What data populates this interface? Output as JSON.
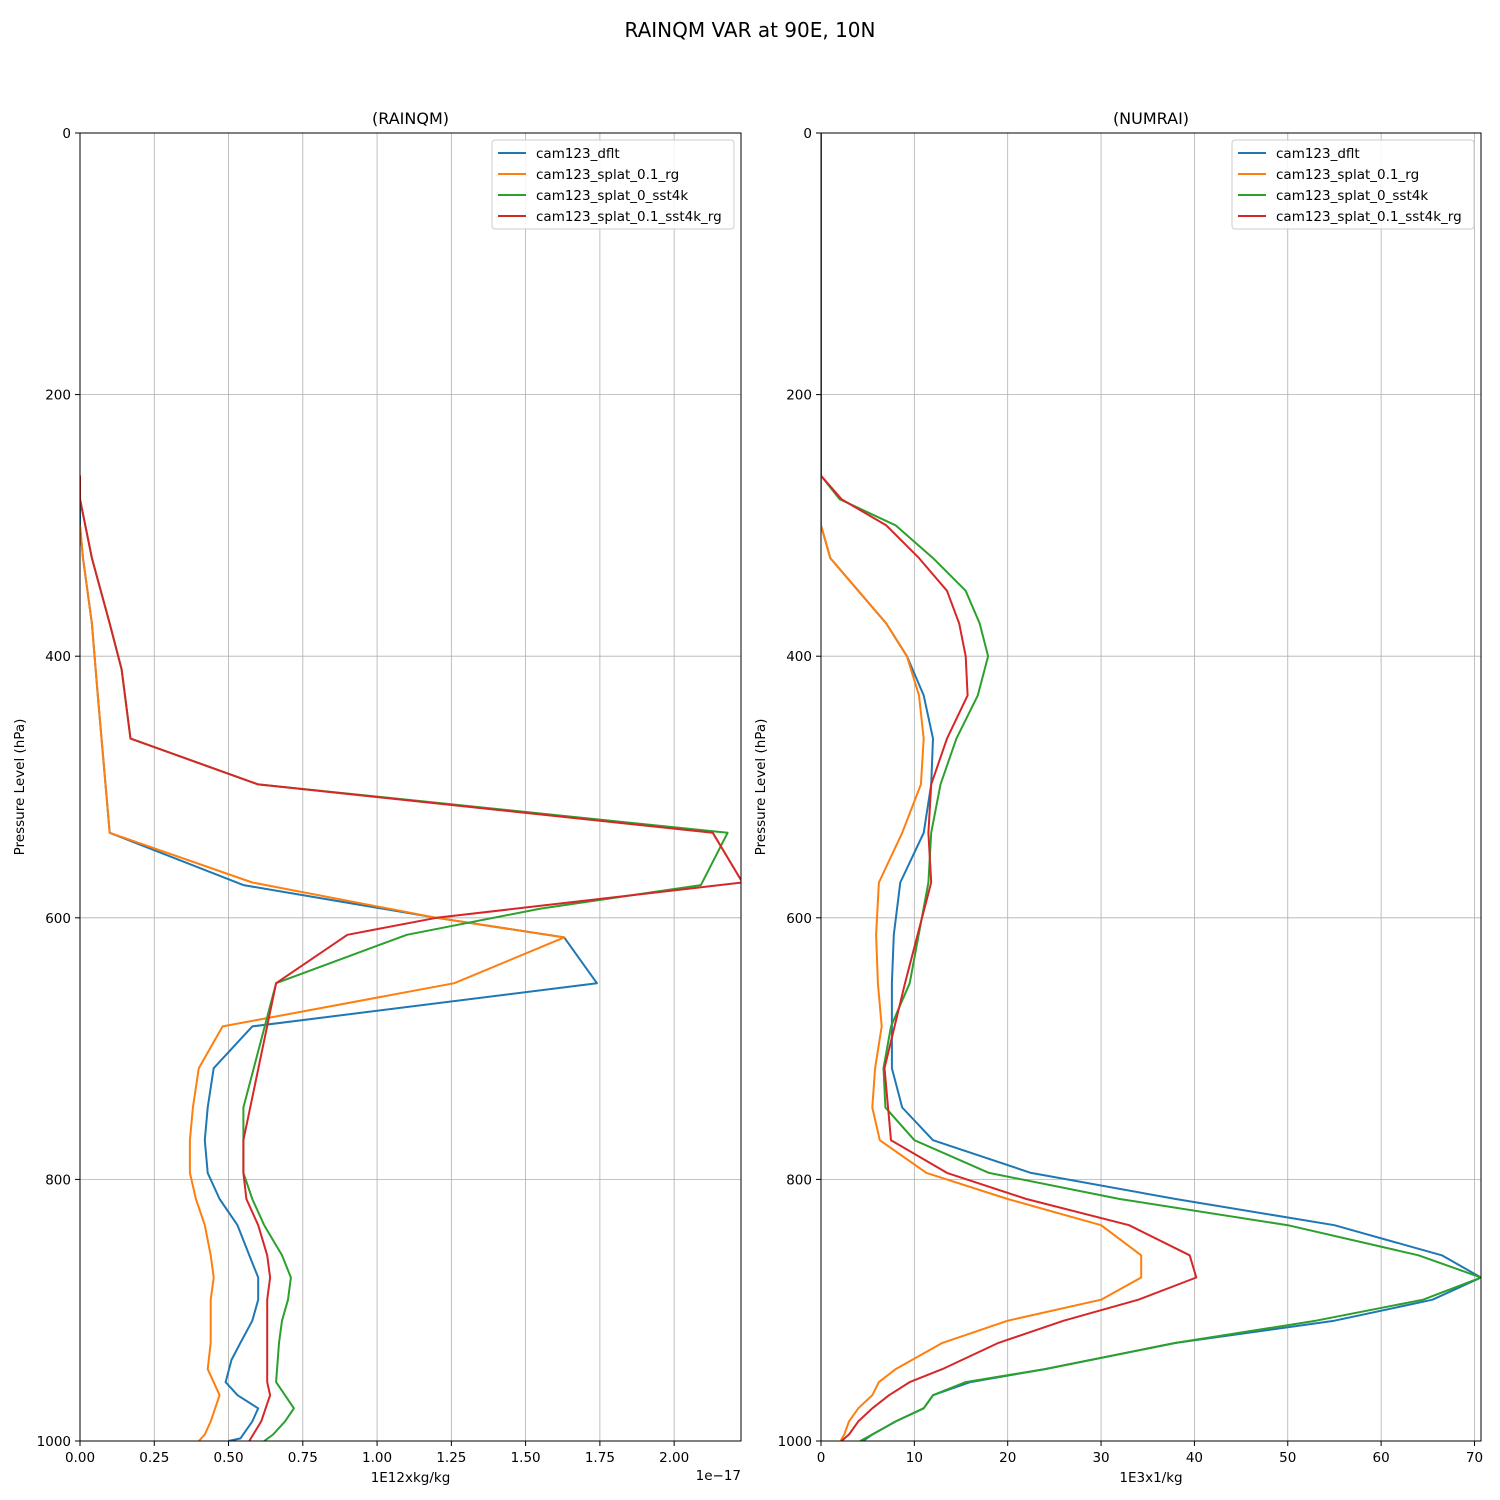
{
  "figure": {
    "suptitle": "RAINQM VAR at 90E, 10N"
  },
  "colors": {
    "series": [
      "#1f77b4",
      "#ff7f0e",
      "#2ca02c",
      "#d62728"
    ],
    "grid": "#b0b0b0",
    "axes": "#000000"
  },
  "chart_data": [
    {
      "type": "line",
      "title": "(RAINQM)",
      "xlabel": "1E12xkg/kg",
      "ylabel": "Pressure Level (hPa)",
      "offset_text": "1e−17",
      "xlim": [
        0,
        2.225
      ],
      "ylim": [
        1000,
        0
      ],
      "yinverted": true,
      "grid": true,
      "legend": "top-right",
      "xticks": [
        "0.00",
        "0.25",
        "0.50",
        "0.75",
        "1.00",
        "1.25",
        "1.50",
        "1.75",
        "2.00"
      ],
      "xtick_values": [
        0,
        0.25,
        0.5,
        0.75,
        1.0,
        1.25,
        1.5,
        1.75,
        2.0
      ],
      "yticks": [
        "0",
        "200",
        "400",
        "600",
        "800",
        "1000"
      ],
      "ytick_values": [
        0,
        200,
        400,
        600,
        800,
        1000
      ],
      "series": [
        {
          "name": "cam123_dflt",
          "color": "#1f77b4",
          "points": [
            [
              0,
              262
            ],
            [
              0,
              300
            ],
            [
              0.01,
              325
            ],
            [
              0.04,
              375
            ],
            [
              0.06,
              430
            ],
            [
              0.1,
              535
            ],
            [
              0.55,
              575
            ],
            [
              1.2,
              600
            ],
            [
              1.63,
              615
            ],
            [
              1.74,
              650
            ],
            [
              0.58,
              683
            ],
            [
              0.45,
              715
            ],
            [
              0.43,
              745
            ],
            [
              0.42,
              770
            ],
            [
              0.43,
              795
            ],
            [
              0.47,
              815
            ],
            [
              0.53,
              835
            ],
            [
              0.57,
              858
            ],
            [
              0.6,
              875
            ],
            [
              0.6,
              892
            ],
            [
              0.58,
              908
            ],
            [
              0.54,
              925
            ],
            [
              0.51,
              938
            ],
            [
              0.49,
              955
            ],
            [
              0.53,
              965
            ],
            [
              0.6,
              975
            ],
            [
              0.58,
              985
            ],
            [
              0.54,
              998
            ],
            [
              0.5,
              1000
            ]
          ]
        },
        {
          "name": "cam123_splat_0.1_rg",
          "color": "#ff7f0e",
          "points": [
            [
              0,
              300
            ],
            [
              0.01,
              325
            ],
            [
              0.04,
              375
            ],
            [
              0.06,
              430
            ],
            [
              0.1,
              535
            ],
            [
              0.58,
              573
            ],
            [
              1.2,
              600
            ],
            [
              1.63,
              615
            ],
            [
              1.26,
              650
            ],
            [
              0.48,
              683
            ],
            [
              0.4,
              715
            ],
            [
              0.38,
              745
            ],
            [
              0.37,
              770
            ],
            [
              0.37,
              795
            ],
            [
              0.39,
              815
            ],
            [
              0.42,
              835
            ],
            [
              0.44,
              858
            ],
            [
              0.45,
              875
            ],
            [
              0.44,
              892
            ],
            [
              0.44,
              908
            ],
            [
              0.44,
              925
            ],
            [
              0.43,
              945
            ],
            [
              0.47,
              965
            ],
            [
              0.44,
              985
            ],
            [
              0.42,
              995
            ],
            [
              0.4,
              1000
            ]
          ]
        },
        {
          "name": "cam123_splat_0_sst4k",
          "color": "#2ca02c",
          "points": [
            [
              0,
              262
            ],
            [
              0,
              280
            ],
            [
              0.04,
              325
            ],
            [
              0.1,
              375
            ],
            [
              0.14,
              410
            ],
            [
              0.17,
              463
            ],
            [
              0.6,
              498
            ],
            [
              2.18,
              535
            ],
            [
              2.09,
              575
            ],
            [
              1.55,
              593
            ],
            [
              1.1,
              613
            ],
            [
              0.66,
              650
            ],
            [
              0.55,
              745
            ],
            [
              0.55,
              795
            ],
            [
              0.58,
              815
            ],
            [
              0.62,
              835
            ],
            [
              0.68,
              858
            ],
            [
              0.71,
              875
            ],
            [
              0.7,
              892
            ],
            [
              0.68,
              908
            ],
            [
              0.67,
              925
            ],
            [
              0.66,
              955
            ],
            [
              0.69,
              965
            ],
            [
              0.72,
              975
            ],
            [
              0.69,
              985
            ],
            [
              0.65,
              995
            ],
            [
              0.62,
              1000
            ]
          ]
        },
        {
          "name": "cam123_splat_0.1_sst4k_rg",
          "color": "#d62728",
          "points": [
            [
              0,
              262
            ],
            [
              0,
              280
            ],
            [
              0.04,
              325
            ],
            [
              0.1,
              375
            ],
            [
              0.14,
              410
            ],
            [
              0.17,
              463
            ],
            [
              0.6,
              498
            ],
            [
              2.13,
              535
            ],
            [
              2.23,
              573
            ],
            [
              1.2,
              600
            ],
            [
              0.9,
              613
            ],
            [
              0.66,
              650
            ],
            [
              0.55,
              770
            ],
            [
              0.55,
              795
            ],
            [
              0.56,
              815
            ],
            [
              0.6,
              835
            ],
            [
              0.63,
              858
            ],
            [
              0.64,
              875
            ],
            [
              0.63,
              892
            ],
            [
              0.63,
              908
            ],
            [
              0.63,
              925
            ],
            [
              0.63,
              945
            ],
            [
              0.63,
              955
            ],
            [
              0.64,
              965
            ],
            [
              0.61,
              985
            ],
            [
              0.57,
              1000
            ]
          ]
        }
      ]
    },
    {
      "type": "line",
      "title": "(NUMRAI)",
      "xlabel": "1E3x1/kg",
      "ylabel": "Pressure Level (hPa)",
      "offset_text": "",
      "xlim": [
        0,
        70.7
      ],
      "ylim": [
        1000,
        0
      ],
      "yinverted": true,
      "grid": true,
      "legend": "top-right",
      "xticks": [
        "0",
        "10",
        "20",
        "30",
        "40",
        "50",
        "60",
        "70"
      ],
      "xtick_values": [
        0,
        10,
        20,
        30,
        40,
        50,
        60,
        70
      ],
      "yticks": [
        "0",
        "200",
        "400",
        "600",
        "800",
        "1000"
      ],
      "ytick_values": [
        0,
        200,
        400,
        600,
        800,
        1000
      ],
      "series": [
        {
          "name": "cam123_dflt",
          "color": "#1f77b4",
          "points": [
            [
              0,
              0
            ],
            [
              0,
              262
            ],
            [
              0,
              300
            ],
            [
              1,
              325
            ],
            [
              4,
              350
            ],
            [
              7,
              375
            ],
            [
              9.2,
              400
            ],
            [
              11,
              430
            ],
            [
              12,
              463
            ],
            [
              11.8,
              498
            ],
            [
              11,
              535
            ],
            [
              8.5,
              573
            ],
            [
              7.8,
              613
            ],
            [
              7.6,
              650
            ],
            [
              7.6,
              683
            ],
            [
              7.6,
              715
            ],
            [
              8.7,
              745
            ],
            [
              12,
              770
            ],
            [
              22.5,
              795
            ],
            [
              38,
              815
            ],
            [
              55,
              835
            ],
            [
              66.5,
              858
            ],
            [
              70.7,
              875
            ],
            [
              65.5,
              892
            ],
            [
              55,
              908
            ],
            [
              38,
              925
            ],
            [
              24,
              945
            ],
            [
              16,
              955
            ],
            [
              12,
              965
            ],
            [
              11,
              975
            ],
            [
              8,
              985
            ],
            [
              5.5,
              995
            ],
            [
              4.5,
              1000
            ]
          ]
        },
        {
          "name": "cam123_splat_0.1_rg",
          "color": "#ff7f0e",
          "points": [
            [
              0,
              0
            ],
            [
              0,
              300
            ],
            [
              1,
              325
            ],
            [
              4,
              350
            ],
            [
              7,
              375
            ],
            [
              9.2,
              400
            ],
            [
              10.5,
              430
            ],
            [
              11,
              463
            ],
            [
              10.7,
              498
            ],
            [
              8.7,
              535
            ],
            [
              6.2,
              573
            ],
            [
              5.9,
              613
            ],
            [
              6.1,
              650
            ],
            [
              6.5,
              683
            ],
            [
              5.8,
              715
            ],
            [
              5.5,
              745
            ],
            [
              6.3,
              770
            ],
            [
              11.3,
              795
            ],
            [
              20,
              815
            ],
            [
              30,
              835
            ],
            [
              34.3,
              858
            ],
            [
              34.3,
              875
            ],
            [
              30,
              892
            ],
            [
              20,
              908
            ],
            [
              13,
              925
            ],
            [
              8,
              945
            ],
            [
              6.2,
              955
            ],
            [
              5.5,
              965
            ],
            [
              4,
              975
            ],
            [
              3,
              985
            ],
            [
              2.5,
              995
            ],
            [
              2.1,
              1000
            ]
          ]
        },
        {
          "name": "cam123_splat_0_sst4k",
          "color": "#2ca02c",
          "points": [
            [
              0,
              0
            ],
            [
              0,
              262
            ],
            [
              2,
              280
            ],
            [
              8,
              300
            ],
            [
              12,
              325
            ],
            [
              15.5,
              350
            ],
            [
              17,
              375
            ],
            [
              17.9,
              400
            ],
            [
              16.8,
              430
            ],
            [
              14.5,
              463
            ],
            [
              12.8,
              498
            ],
            [
              11.8,
              535
            ],
            [
              11.5,
              573
            ],
            [
              9.5,
              650
            ],
            [
              7.5,
              683
            ],
            [
              6.7,
              715
            ],
            [
              6.9,
              745
            ],
            [
              10,
              770
            ],
            [
              18,
              795
            ],
            [
              32,
              815
            ],
            [
              50,
              835
            ],
            [
              64,
              858
            ],
            [
              70.7,
              875
            ],
            [
              64.5,
              892
            ],
            [
              53,
              908
            ],
            [
              38,
              925
            ],
            [
              24,
              945
            ],
            [
              15.5,
              955
            ],
            [
              12,
              965
            ],
            [
              11,
              975
            ],
            [
              8,
              985
            ],
            [
              5.5,
              995
            ],
            [
              4.2,
              1000
            ]
          ]
        },
        {
          "name": "cam123_splat_0.1_sst4k_rg",
          "color": "#d62728",
          "points": [
            [
              0,
              0
            ],
            [
              0,
              262
            ],
            [
              2.2,
              280
            ],
            [
              7,
              300
            ],
            [
              10.5,
              325
            ],
            [
              13.5,
              350
            ],
            [
              14.8,
              375
            ],
            [
              15.5,
              400
            ],
            [
              15.7,
              430
            ],
            [
              13.5,
              463
            ],
            [
              11.8,
              498
            ],
            [
              11.5,
              535
            ],
            [
              11.8,
              573
            ],
            [
              9,
              650
            ],
            [
              6.8,
              715
            ],
            [
              7.5,
              770
            ],
            [
              13.5,
              795
            ],
            [
              22,
              815
            ],
            [
              33,
              835
            ],
            [
              39.5,
              858
            ],
            [
              40.2,
              875
            ],
            [
              34,
              892
            ],
            [
              26,
              908
            ],
            [
              19,
              925
            ],
            [
              13,
              945
            ],
            [
              9.5,
              955
            ],
            [
              7.3,
              965
            ],
            [
              5.5,
              975
            ],
            [
              4,
              985
            ],
            [
              3,
              995
            ],
            [
              2.2,
              1000
            ]
          ]
        }
      ]
    }
  ]
}
